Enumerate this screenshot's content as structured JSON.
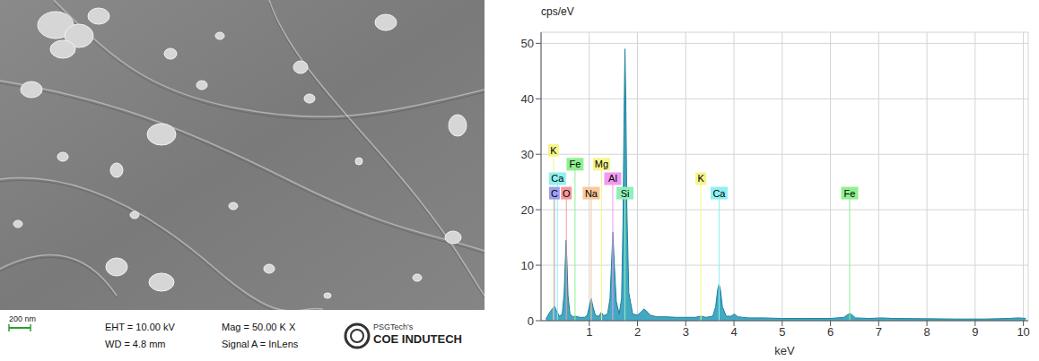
{
  "image": {
    "scale_bar": "200 nm",
    "info": [
      [
        "EHT = 10.00 kV",
        "WD = 4.8 mm"
      ],
      [
        "Mag = 50.00 K X",
        "Signal A = InLens"
      ]
    ],
    "logo": [
      "PSGTech's",
      "COE INDUTECH"
    ]
  },
  "chart_data": {
    "type": "area",
    "y_label": "cps/eV",
    "x_label": "keV",
    "x": [
      0.1,
      0.18,
      0.24,
      0.28,
      0.32,
      0.38,
      0.44,
      0.48,
      0.5,
      0.52,
      0.54,
      0.56,
      0.6,
      0.66,
      0.72,
      0.8,
      0.9,
      0.96,
      1.0,
      1.04,
      1.08,
      1.13,
      1.2,
      1.25,
      1.3,
      1.38,
      1.43,
      1.46,
      1.49,
      1.52,
      1.56,
      1.62,
      1.67,
      1.7,
      1.72,
      1.74,
      1.76,
      1.78,
      1.82,
      1.9,
      2.0,
      2.08,
      2.13,
      2.18,
      2.26,
      2.4,
      2.6,
      2.8,
      3.0,
      3.2,
      3.31,
      3.42,
      3.56,
      3.62,
      3.66,
      3.69,
      3.72,
      3.76,
      3.84,
      3.94,
      4.01,
      4.08,
      4.3,
      4.6,
      5.0,
      5.5,
      6.0,
      6.28,
      6.36,
      6.4,
      6.44,
      6.52,
      6.8,
      7.06,
      7.3,
      8.0,
      8.6,
      9.2,
      9.7,
      9.9,
      10.05
    ],
    "values": [
      0.3,
      1.5,
      2.2,
      2.6,
      1.8,
      0.8,
      1.2,
      5,
      10,
      14.5,
      10,
      4.5,
      1.2,
      0.7,
      0.8,
      0.6,
      0.6,
      1.0,
      2.5,
      4.0,
      2.4,
      0.9,
      0.8,
      1.5,
      0.9,
      1.2,
      4,
      10,
      16,
      10,
      3.5,
      1.2,
      4,
      18,
      36,
      49,
      38,
      20,
      5,
      1.2,
      1.0,
      1.6,
      2.1,
      1.8,
      1.0,
      0.7,
      0.7,
      0.6,
      0.6,
      0.6,
      0.8,
      0.6,
      0.8,
      2.5,
      5.5,
      6.6,
      5.5,
      2.5,
      0.8,
      0.8,
      1.2,
      0.7,
      0.5,
      0.5,
      0.4,
      0.4,
      0.4,
      0.6,
      1.1,
      1.3,
      1.1,
      0.5,
      0.4,
      0.5,
      0.4,
      0.35,
      0.3,
      0.3,
      0.4,
      0.5,
      0.4
    ],
    "color": "#2fa0bd",
    "xlim": [
      0,
      10.1
    ],
    "xticks": [
      1,
      2,
      3,
      4,
      5,
      6,
      7,
      8,
      9,
      10
    ],
    "ylim": [
      0,
      52
    ],
    "yticks": [
      0,
      10,
      20,
      30,
      40,
      50
    ],
    "grid": true,
    "annotations": [
      {
        "text": "K",
        "x": 0.26,
        "y": 30.7,
        "color": "#f5f58a"
      },
      {
        "text": "Ca",
        "x": 0.34,
        "y": 25.6,
        "color": "#8ff0f0"
      },
      {
        "text": "C",
        "x": 0.277,
        "y": 23,
        "color": "#9f9ff0"
      },
      {
        "text": "O",
        "x": 0.525,
        "y": 23,
        "color": "#f59a9a"
      },
      {
        "text": "Fe",
        "x": 0.705,
        "y": 28.2,
        "color": "#8ff08f"
      },
      {
        "text": "Na",
        "x": 1.041,
        "y": 23,
        "color": "#f8c89a"
      },
      {
        "text": "Mg",
        "x": 1.254,
        "y": 28.2,
        "color": "#f5f58a"
      },
      {
        "text": "Al",
        "x": 1.487,
        "y": 25.6,
        "color": "#f09af0"
      },
      {
        "text": "Si",
        "x": 1.74,
        "y": 23,
        "color": "#8ff0b8"
      },
      {
        "text": "K",
        "x": 3.313,
        "y": 25.6,
        "color": "#f5f58a"
      },
      {
        "text": "Ca",
        "x": 3.691,
        "y": 23,
        "color": "#8ff0f0"
      },
      {
        "text": "Fe",
        "x": 6.398,
        "y": 23,
        "color": "#8ff08f"
      }
    ]
  }
}
